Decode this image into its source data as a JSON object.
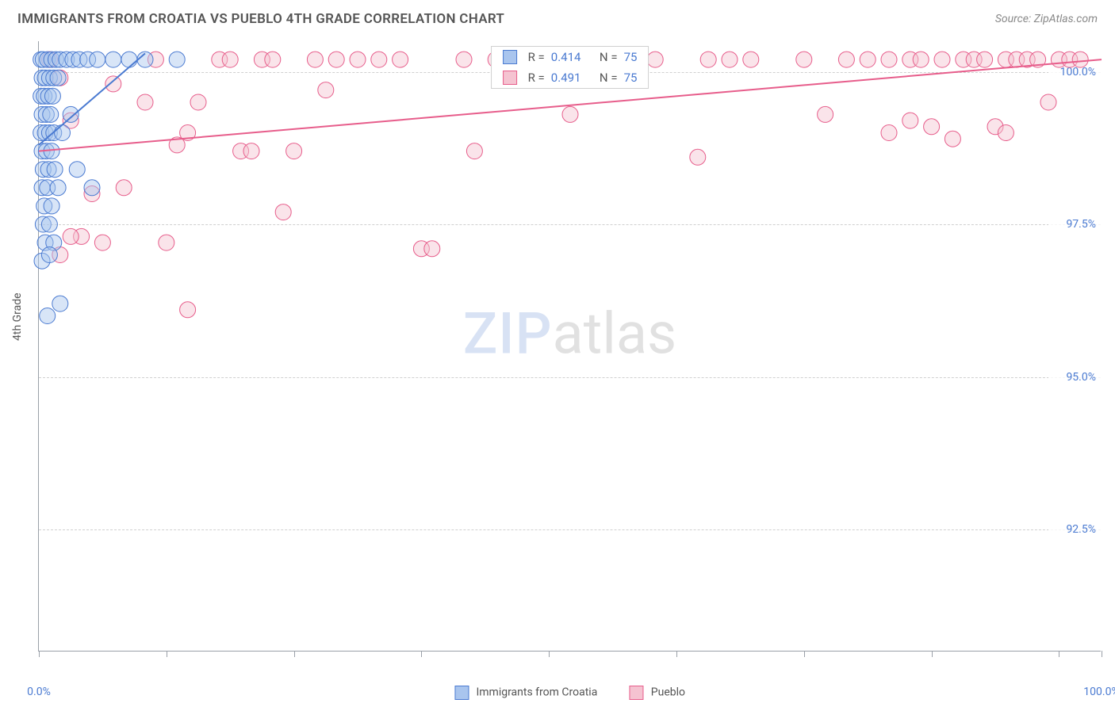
{
  "title": "IMMIGRANTS FROM CROATIA VS PUEBLO 4TH GRADE CORRELATION CHART",
  "source_label": "Source: ZipAtlas.com",
  "ylabel": "4th Grade",
  "watermark": {
    "part1": "ZIP",
    "part2": "atlas"
  },
  "chart": {
    "type": "scatter",
    "background_color": "#ffffff",
    "grid_color": "#d0d0d0",
    "axis_color": "#9aa0a8",
    "label_color": "#4a7ad1",
    "title_color": "#555555",
    "title_fontsize": 17,
    "label_fontsize": 14,
    "marker_radius": 10,
    "marker_opacity": 0.45,
    "line_width": 2,
    "x_domain": [
      0,
      100
    ],
    "y_domain": [
      90.5,
      100.5
    ],
    "x_ticks": [
      0,
      12,
      24,
      36,
      48,
      60,
      72,
      84,
      96,
      100
    ],
    "x_tick_labels": {
      "0": "0.0%",
      "100": "100.0%"
    },
    "y_ticks": [
      92.5,
      95.0,
      97.5,
      100.0
    ],
    "y_tick_labels": [
      "92.5%",
      "95.0%",
      "97.5%",
      "100.0%"
    ],
    "series": [
      {
        "name": "Immigrants from Croatia",
        "color_fill": "#a9c5ee",
        "color_stroke": "#4a7ad1",
        "R": "0.414",
        "N": "75",
        "regression": {
          "x1": 0,
          "y1": 98.8,
          "x2": 10,
          "y2": 100.3
        },
        "points": [
          [
            0.2,
            100.2
          ],
          [
            0.4,
            100.2
          ],
          [
            0.8,
            100.2
          ],
          [
            1.2,
            100.2
          ],
          [
            1.6,
            100.2
          ],
          [
            2.0,
            100.2
          ],
          [
            2.6,
            100.2
          ],
          [
            3.2,
            100.2
          ],
          [
            3.8,
            100.2
          ],
          [
            4.6,
            100.2
          ],
          [
            5.5,
            100.2
          ],
          [
            7.0,
            100.2
          ],
          [
            8.5,
            100.2
          ],
          [
            10,
            100.2
          ],
          [
            13,
            100.2
          ],
          [
            0.3,
            99.9
          ],
          [
            0.6,
            99.9
          ],
          [
            1.0,
            99.9
          ],
          [
            1.4,
            99.9
          ],
          [
            1.8,
            99.9
          ],
          [
            0.2,
            99.6
          ],
          [
            0.5,
            99.6
          ],
          [
            0.9,
            99.6
          ],
          [
            1.3,
            99.6
          ],
          [
            0.3,
            99.3
          ],
          [
            0.7,
            99.3
          ],
          [
            1.1,
            99.3
          ],
          [
            3.0,
            99.3
          ],
          [
            0.2,
            99.0
          ],
          [
            0.6,
            99.0
          ],
          [
            1.0,
            99.0
          ],
          [
            1.4,
            99.0
          ],
          [
            2.2,
            99.0
          ],
          [
            0.3,
            98.7
          ],
          [
            0.7,
            98.7
          ],
          [
            1.2,
            98.7
          ],
          [
            0.4,
            98.4
          ],
          [
            0.9,
            98.4
          ],
          [
            1.5,
            98.4
          ],
          [
            3.6,
            98.4
          ],
          [
            0.3,
            98.1
          ],
          [
            0.8,
            98.1
          ],
          [
            1.8,
            98.1
          ],
          [
            5.0,
            98.1
          ],
          [
            0.5,
            97.8
          ],
          [
            1.2,
            97.8
          ],
          [
            0.4,
            97.5
          ],
          [
            1.0,
            97.5
          ],
          [
            0.6,
            97.2
          ],
          [
            1.4,
            97.2
          ],
          [
            0.3,
            96.9
          ],
          [
            0.8,
            96.0
          ],
          [
            1.0,
            97.0
          ],
          [
            2.0,
            96.2
          ]
        ]
      },
      {
        "name": "Pueblo",
        "color_fill": "#f5c3d1",
        "color_stroke": "#e75d8b",
        "R": "0.491",
        "N": "75",
        "regression": {
          "x1": 0,
          "y1": 98.7,
          "x2": 100,
          "y2": 100.2
        },
        "points": [
          [
            1,
            100.2
          ],
          [
            2,
            99.9
          ],
          [
            3,
            99.2
          ],
          [
            4,
            97.3
          ],
          [
            5,
            98.0
          ],
          [
            6,
            97.2
          ],
          [
            7,
            99.8
          ],
          [
            2,
            97.0
          ],
          [
            3,
            97.3
          ],
          [
            8,
            98.1
          ],
          [
            10,
            99.5
          ],
          [
            11,
            100.2
          ],
          [
            12,
            97.2
          ],
          [
            13,
            98.8
          ],
          [
            14,
            99.0
          ],
          [
            14,
            96.1
          ],
          [
            15,
            99.5
          ],
          [
            17,
            100.2
          ],
          [
            18,
            100.2
          ],
          [
            19,
            98.7
          ],
          [
            20,
            98.7
          ],
          [
            21,
            100.2
          ],
          [
            22,
            100.2
          ],
          [
            23,
            97.7
          ],
          [
            24,
            98.7
          ],
          [
            26,
            100.2
          ],
          [
            27,
            99.7
          ],
          [
            28,
            100.2
          ],
          [
            30,
            100.2
          ],
          [
            32,
            100.2
          ],
          [
            34,
            100.2
          ],
          [
            36,
            97.1
          ],
          [
            37,
            97.1
          ],
          [
            40,
            100.2
          ],
          [
            41,
            98.7
          ],
          [
            43,
            100.2
          ],
          [
            50,
            99.3
          ],
          [
            53,
            100.2
          ],
          [
            55,
            100.2
          ],
          [
            58,
            100.2
          ],
          [
            62,
            98.6
          ],
          [
            63,
            100.2
          ],
          [
            65,
            100.2
          ],
          [
            67,
            100.2
          ],
          [
            72,
            100.2
          ],
          [
            74,
            99.3
          ],
          [
            76,
            100.2
          ],
          [
            78,
            100.2
          ],
          [
            80,
            99.0
          ],
          [
            80,
            100.2
          ],
          [
            82,
            99.2
          ],
          [
            82,
            100.2
          ],
          [
            83,
            100.2
          ],
          [
            84,
            99.1
          ],
          [
            85,
            100.2
          ],
          [
            86,
            98.9
          ],
          [
            87,
            100.2
          ],
          [
            88,
            100.2
          ],
          [
            89,
            100.2
          ],
          [
            90,
            99.1
          ],
          [
            91,
            100.2
          ],
          [
            92,
            100.2
          ],
          [
            93,
            100.2
          ],
          [
            94,
            100.2
          ],
          [
            91,
            99.0
          ],
          [
            95,
            99.5
          ],
          [
            96,
            100.2
          ],
          [
            97,
            100.2
          ],
          [
            98,
            100.2
          ]
        ]
      }
    ],
    "legend_bottom_labels": [
      "Immigrants from Croatia",
      "Pueblo"
    ],
    "legend_top_template": {
      "r_label": "R =",
      "n_label": "N ="
    }
  }
}
